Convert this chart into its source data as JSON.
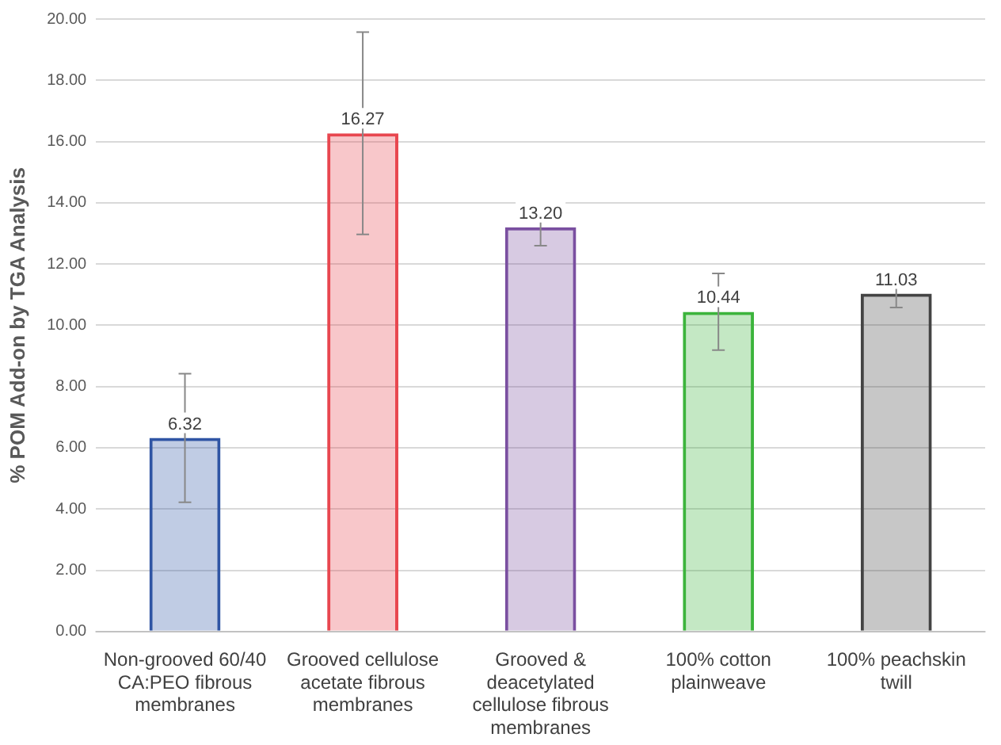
{
  "chart_data": {
    "type": "bar",
    "ylabel": "% POM Add-on by TGA Analysis",
    "categories": [
      "Non-grooved 60/40 CA:PEO fibrous membranes",
      "Grooved cellulose acetate fibrous membranes",
      "Grooved & deacetylated cellulose fibrous membranes",
      "100% cotton plainweave",
      "100% peachskin twill"
    ],
    "values": [
      6.32,
      16.27,
      13.2,
      10.44,
      11.03
    ],
    "value_labels": [
      "6.32",
      "16.27",
      "13.20",
      "10.44",
      "11.03"
    ],
    "errors": [
      2.1,
      3.3,
      0.6,
      1.25,
      0.45
    ],
    "colors": [
      "#2f55a4",
      "#e8474f",
      "#7a4fa0",
      "#3cb43c",
      "#444444"
    ],
    "ylim": [
      0,
      20
    ],
    "yticks": [
      {
        "value": 0,
        "label": "0.00"
      },
      {
        "value": 2,
        "label": "2.00"
      },
      {
        "value": 4,
        "label": "4.00"
      },
      {
        "value": 6,
        "label": "6.00"
      },
      {
        "value": 8,
        "label": "8.00"
      },
      {
        "value": 10,
        "label": "10.00"
      },
      {
        "value": 12,
        "label": "12.00"
      },
      {
        "value": 14,
        "label": "14.00"
      },
      {
        "value": 16,
        "label": "16.00"
      },
      {
        "value": 18,
        "label": "18.00"
      },
      {
        "value": 20,
        "label": "20.00"
      }
    ],
    "grid": "y"
  }
}
